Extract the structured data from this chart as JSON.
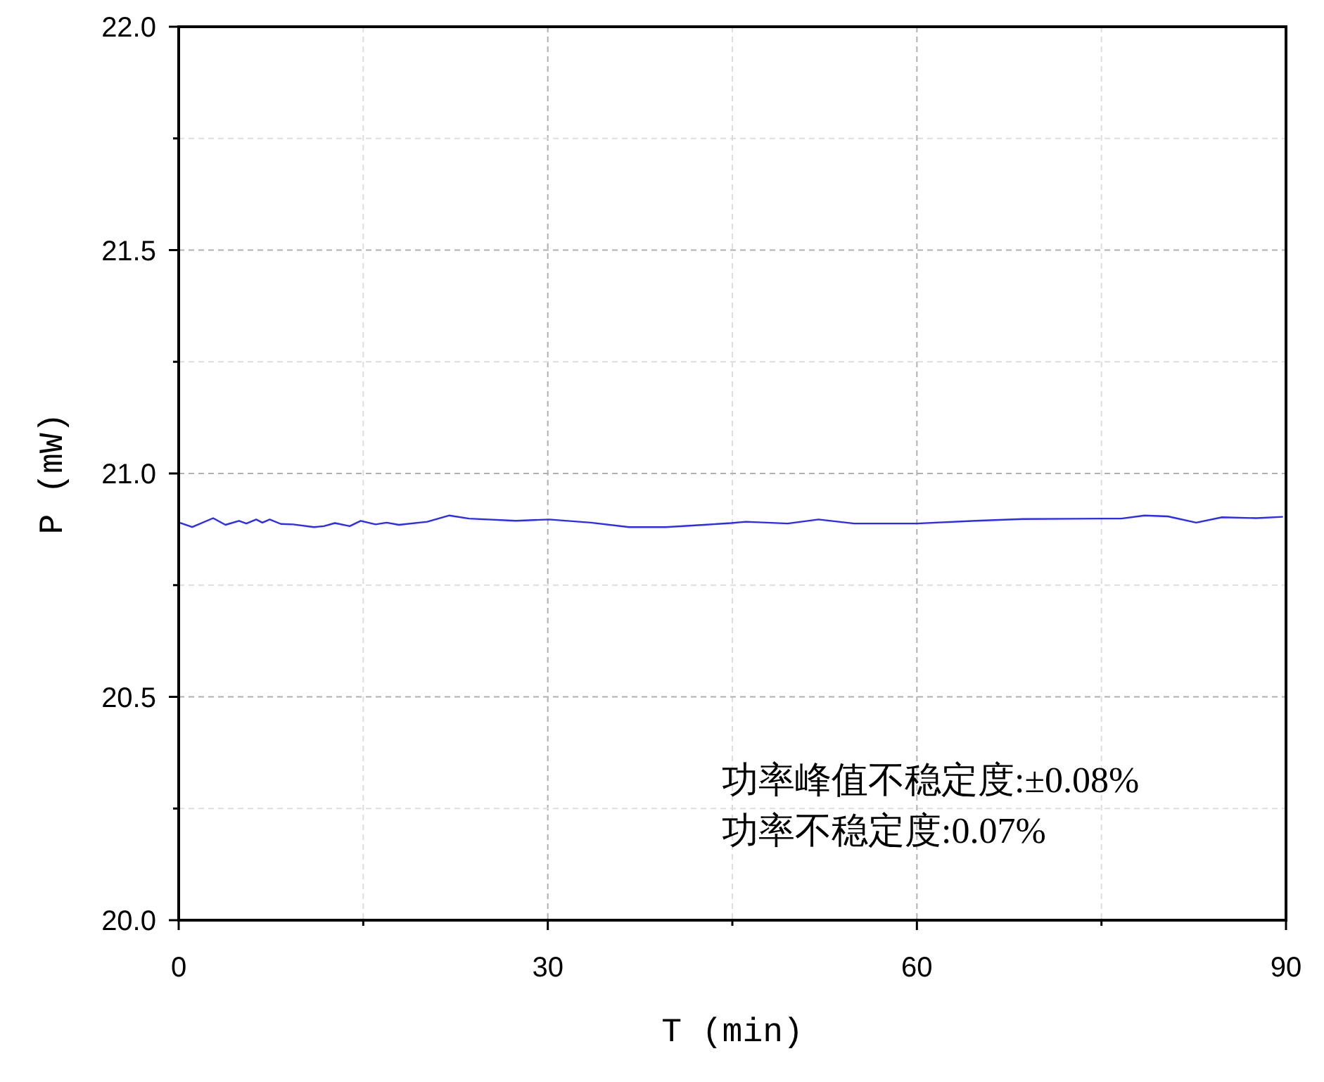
{
  "chart_data": {
    "type": "line",
    "xlabel": "T (min)",
    "ylabel": "P (mW)",
    "x": [
      0.15,
      1.1,
      2.8,
      3.8,
      4.9,
      5.5,
      6.3,
      6.8,
      7.4,
      8.3,
      9.3,
      11.0,
      11.8,
      12.7,
      13.9,
      14.8,
      16.0,
      16.9,
      17.9,
      20.2,
      22.0,
      23.6,
      27.4,
      30.1,
      33.5,
      36.6,
      39.6,
      42.7,
      44.9,
      46.1,
      49.5,
      52.0,
      54.9,
      60.0,
      64.8,
      68.6,
      75.1,
      76.6,
      78.5,
      80.4,
      82.7,
      84.8,
      87.6,
      89.7
    ],
    "series": [
      {
        "color": "#2a2aff",
        "values": [
          20.889,
          20.88,
          20.9,
          20.885,
          20.894,
          20.888,
          20.897,
          20.89,
          20.897,
          20.887,
          20.886,
          20.88,
          20.882,
          20.889,
          20.882,
          20.894,
          20.886,
          20.89,
          20.885,
          20.892,
          20.906,
          20.899,
          20.894,
          20.897,
          20.89,
          20.88,
          20.88,
          20.885,
          20.889,
          20.892,
          20.888,
          20.897,
          20.888,
          20.888,
          20.894,
          20.898,
          20.899,
          20.899,
          20.906,
          20.904,
          20.89,
          20.902,
          20.9,
          20.903
        ]
      }
    ],
    "xlim": [
      0,
      90
    ],
    "ylim": [
      20.0,
      22.0
    ],
    "xticks": [
      0,
      30,
      60,
      90
    ],
    "yticks": [
      {
        "value": 20.0,
        "label": "20.0"
      },
      {
        "value": 20.5,
        "label": "20.5"
      },
      {
        "value": 21.0,
        "label": "21.0"
      },
      {
        "value": 21.5,
        "label": "21.5"
      },
      {
        "value": 22.0,
        "label": "22.0"
      }
    ],
    "grid": true,
    "annotations": [
      "功率峰值不稳定度:±0.08%",
      "功率不稳定度:0.07%"
    ]
  }
}
